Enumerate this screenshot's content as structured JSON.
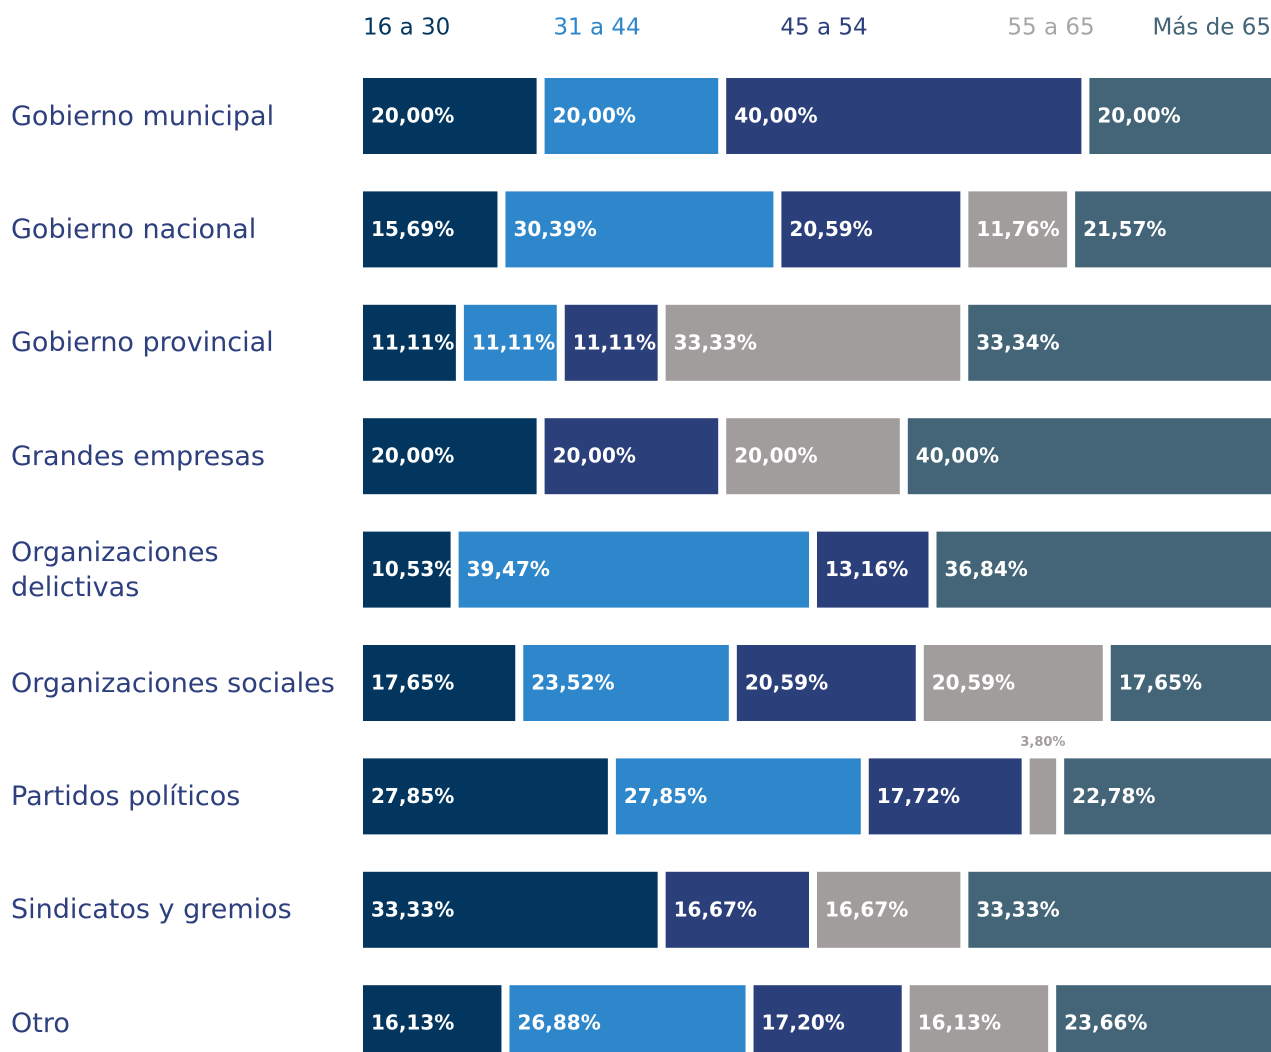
{
  "chart_data": {
    "type": "bar",
    "orientation": "horizontal",
    "stacked": true,
    "categories": [
      "Gobierno municipal",
      "Gobierno nacional",
      "Gobierno provincial",
      "Grandes empresas",
      "Organizaciones delictivas",
      "Organizaciones sociales",
      "Partidos políticos",
      "Sindicatos y gremios",
      "Otro"
    ],
    "series": [
      {
        "name": "16 a 30",
        "color": "#02365f",
        "values": [
          20,
          15.69,
          11.11,
          20,
          10.53,
          17.65,
          27.85,
          33.33,
          16.13
        ],
        "value_labels": [
          "20,00%",
          "15,69%",
          "11,11%",
          "20,00%",
          "10,53%",
          "17,65%",
          "27,85%",
          "33,33%",
          "16,13%"
        ]
      },
      {
        "name": "31 a 44",
        "color": "#2e86cb",
        "values": [
          20,
          30.39,
          11.11,
          null,
          39.47,
          23.52,
          27.85,
          null,
          26.88
        ],
        "value_labels": [
          "20,00%",
          "30,39%",
          "11,11%",
          null,
          "39,47%",
          "23,52%",
          "27,85%",
          null,
          "26,88%"
        ]
      },
      {
        "name": "45 a 54",
        "color": "#2b3f7a",
        "values": [
          40,
          20.59,
          11.11,
          20,
          13.16,
          20.59,
          17.72,
          16.67,
          17.2
        ],
        "value_labels": [
          "40,00%",
          "20,59%",
          "11,11%",
          "20,00%",
          "13,16%",
          "20,59%",
          "17,72%",
          "16,67%",
          "17,20%"
        ]
      },
      {
        "name": "55 a 65",
        "color": "#a19d9c",
        "values": [
          null,
          11.76,
          33.33,
          20,
          null,
          20.59,
          3.8,
          16.67,
          16.13
        ],
        "value_labels": [
          null,
          "11,76%",
          "33,33%",
          "20,00%",
          null,
          "20,59%",
          "3,80%",
          "16,67%",
          "16,13%"
        ]
      },
      {
        "name": "Más de 65",
        "color": "#436577",
        "values": [
          20,
          21.57,
          33.34,
          40,
          36.84,
          17.65,
          22.78,
          33.33,
          23.66
        ],
        "value_labels": [
          "20,00%",
          "21,57%",
          "33,34%",
          "40,00%",
          "36,84%",
          "17,65%",
          "22,78%",
          "33,33%",
          "23,66%"
        ]
      }
    ]
  }
}
